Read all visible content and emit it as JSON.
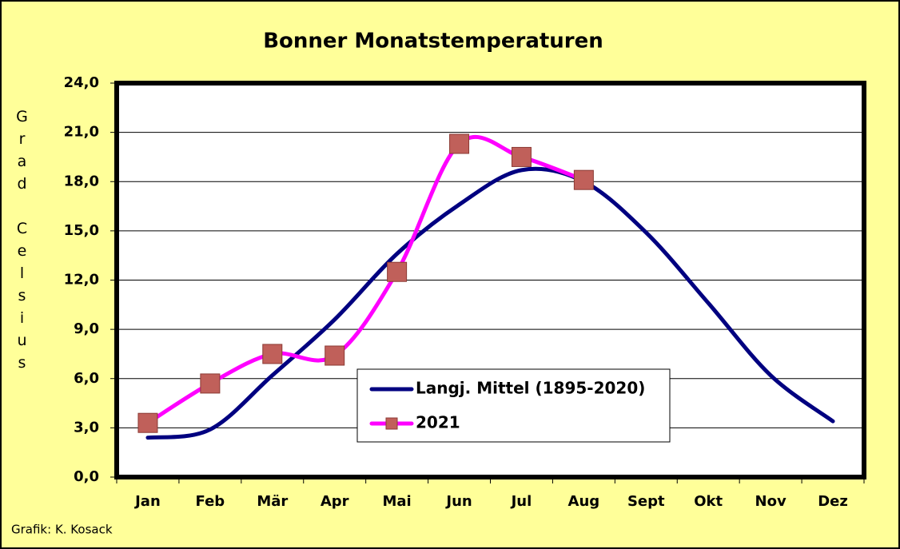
{
  "chart_data": {
    "type": "line",
    "title": "Bonner Monatstemperaturen",
    "y_label": "Grad Celsius",
    "footer": "Grafik:  K. Kosack",
    "categories": [
      "Jan",
      "Feb",
      "Mär",
      "Apr",
      "Mai",
      "Jun",
      "Jul",
      "Aug",
      "Sept",
      "Okt",
      "Nov",
      "Dez"
    ],
    "series": [
      {
        "name": "Langj. Mittel (1895-2020)",
        "color": "#000080",
        "values": [
          2.4,
          2.9,
          6.2,
          9.6,
          13.6,
          16.6,
          18.7,
          18.0,
          14.9,
          10.6,
          6.2,
          3.4
        ]
      },
      {
        "name": "2021",
        "color": "#ff00ff",
        "marker_color": "#c0605a",
        "values": [
          3.3,
          5.7,
          7.5,
          7.4,
          12.5,
          20.3,
          19.5,
          18.1,
          null,
          null,
          null,
          null
        ]
      }
    ],
    "ylim": [
      0,
      24
    ],
    "yticks": [
      {
        "value": 0,
        "label": "0,0"
      },
      {
        "value": 3,
        "label": "3,0"
      },
      {
        "value": 6,
        "label": "6,0"
      },
      {
        "value": 9,
        "label": "9,0"
      },
      {
        "value": 12,
        "label": "12,0"
      },
      {
        "value": 15,
        "label": "15,0"
      },
      {
        "value": 18,
        "label": "18,0"
      },
      {
        "value": 21,
        "label": "21,0"
      },
      {
        "value": 24,
        "label": "24,0"
      }
    ],
    "grid": true,
    "smooth": true
  }
}
